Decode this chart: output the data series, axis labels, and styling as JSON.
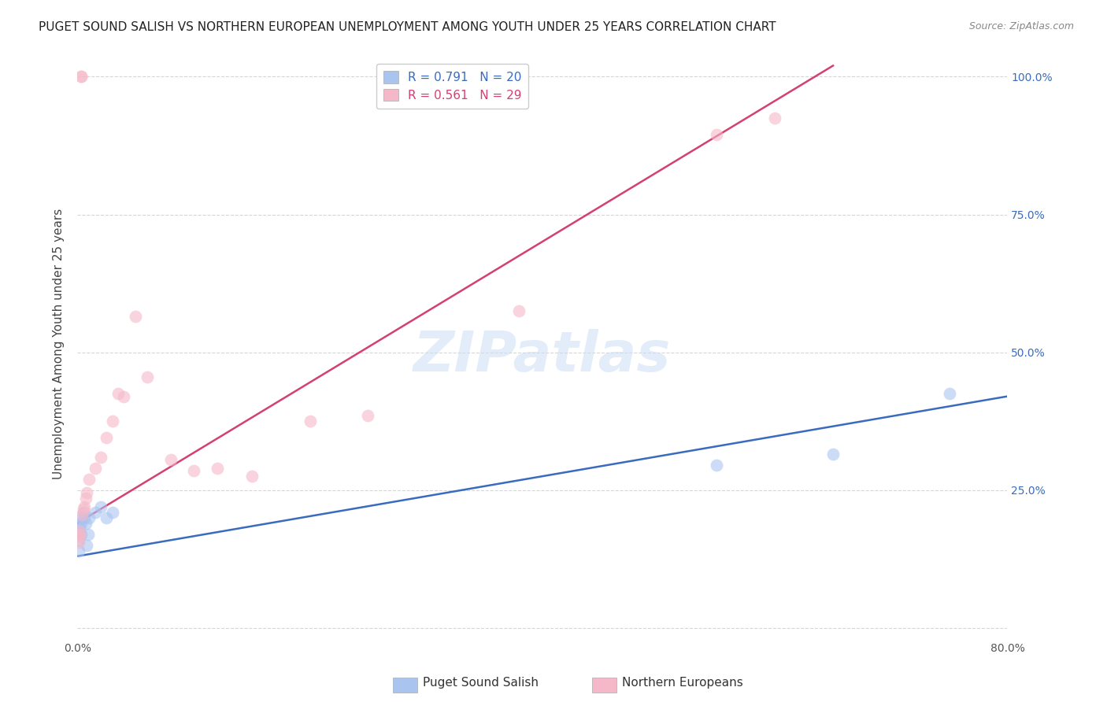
{
  "title": "PUGET SOUND SALISH VS NORTHERN EUROPEAN UNEMPLOYMENT AMONG YOUTH UNDER 25 YEARS CORRELATION CHART",
  "source": "Source: ZipAtlas.com",
  "ylabel": "Unemployment Among Youth under 25 years",
  "xlim": [
    0,
    0.8
  ],
  "ylim": [
    0,
    1.05
  ],
  "blue_R": 0.791,
  "blue_N": 20,
  "pink_R": 0.561,
  "pink_N": 29,
  "blue_label": "Puget Sound Salish",
  "pink_label": "Northern Europeans",
  "watermark": "ZIPatlas",
  "blue_color": "#aac4f0",
  "pink_color": "#f5b8c8",
  "blue_line_color": "#3a6bbf",
  "pink_line_color": "#d44070",
  "blue_scatter_x": [
    0.001,
    0.001,
    0.002,
    0.002,
    0.003,
    0.003,
    0.004,
    0.005,
    0.006,
    0.007,
    0.008,
    0.009,
    0.01,
    0.015,
    0.02,
    0.025,
    0.03,
    0.55,
    0.65,
    0.75
  ],
  "blue_scatter_y": [
    0.14,
    0.16,
    0.18,
    0.19,
    0.17,
    0.19,
    0.2,
    0.21,
    0.2,
    0.19,
    0.15,
    0.17,
    0.2,
    0.21,
    0.22,
    0.2,
    0.21,
    0.295,
    0.315,
    0.425
  ],
  "pink_scatter_x": [
    0.001,
    0.001,
    0.002,
    0.002,
    0.003,
    0.003,
    0.004,
    0.005,
    0.006,
    0.007,
    0.008,
    0.01,
    0.015,
    0.02,
    0.025,
    0.03,
    0.035,
    0.04,
    0.05,
    0.06,
    0.08,
    0.1,
    0.12,
    0.15,
    0.2,
    0.25,
    0.38,
    0.55,
    0.6
  ],
  "pink_scatter_y": [
    0.155,
    0.17,
    0.165,
    0.175,
    1.0,
    1.0,
    0.205,
    0.215,
    0.22,
    0.235,
    0.245,
    0.27,
    0.29,
    0.31,
    0.345,
    0.375,
    0.425,
    0.42,
    0.565,
    0.455,
    0.305,
    0.285,
    0.29,
    0.275,
    0.375,
    0.385,
    0.575,
    0.895,
    0.925
  ],
  "blue_line_x0": 0.0,
  "blue_line_y0": 0.13,
  "blue_line_x1": 0.8,
  "blue_line_y1": 0.42,
  "pink_line_x0": 0.0,
  "pink_line_y0": 0.19,
  "pink_line_x1": 0.65,
  "pink_line_y1": 1.02,
  "background_color": "#ffffff",
  "title_fontsize": 11,
  "axis_label_fontsize": 11,
  "tick_fontsize": 10,
  "legend_fontsize": 11,
  "watermark_fontsize": 52,
  "watermark_color": "#ccdff5",
  "watermark_alpha": 0.55
}
